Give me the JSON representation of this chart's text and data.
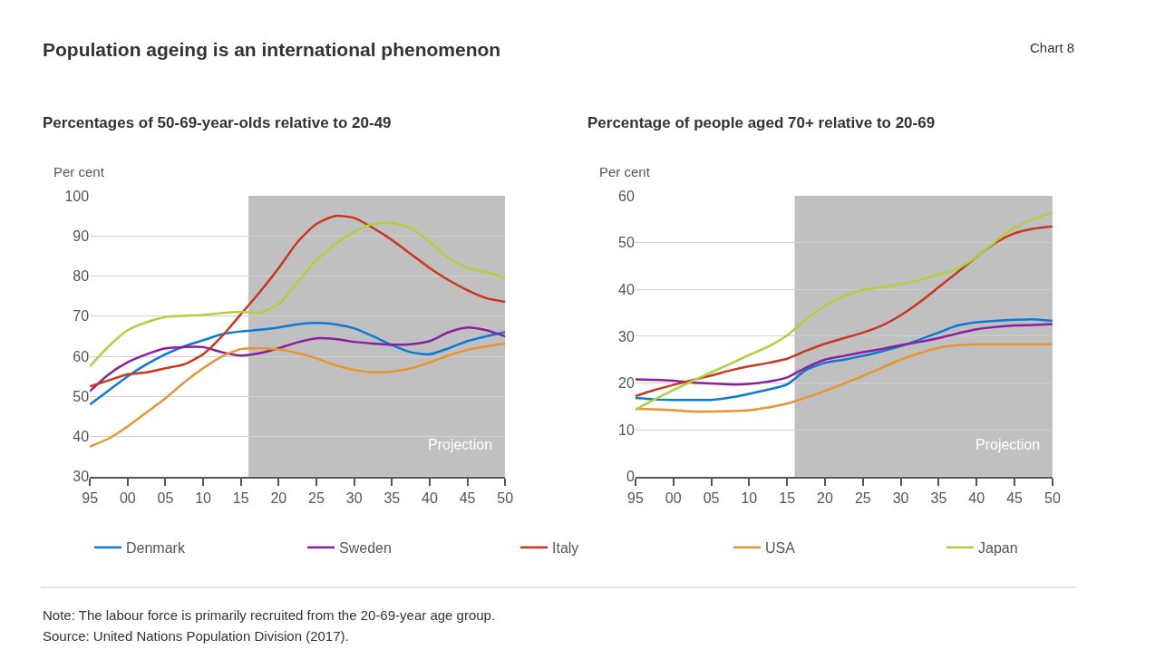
{
  "chart_data": [
    {
      "type": "line",
      "title": "Percentages of 50-69-year-olds relative to 20-49",
      "ylabel": "Per cent",
      "annotations": [
        "Population ageing is an international phenomenon",
        "Chart 8",
        "Note: The labour force is primarily recruited from the 20-69-year age group.",
        "Source: United Nations Population Division (2017)."
      ],
      "x": [
        1995,
        1997.5,
        2000,
        2002.5,
        2005,
        2007.5,
        2010,
        2012.5,
        2015,
        2017.5,
        2020,
        2022.5,
        2025,
        2027.5,
        2030,
        2032.5,
        2035,
        2037.5,
        2040,
        2042.5,
        2045,
        2047.5,
        2050
      ],
      "series": [
        {
          "name": "Denmark",
          "color": "#0a7ad4",
          "values": [
            48,
            51.5,
            55,
            58,
            60.5,
            62.5,
            64,
            65.5,
            66.2,
            66.6,
            67.2,
            68,
            68.3,
            68,
            67,
            65,
            62.8,
            61,
            60.5,
            62,
            63.8,
            65,
            66
          ]
        },
        {
          "name": "Sweden",
          "color": "#8b1fa0",
          "values": [
            51.3,
            55.5,
            58.5,
            60.5,
            62,
            62.3,
            62.3,
            61,
            60.2,
            60.8,
            62,
            63.5,
            64.5,
            64.3,
            63.6,
            63.2,
            62.9,
            63,
            63.8,
            66,
            67.2,
            66.5,
            65
          ]
        },
        {
          "name": "Italy",
          "color": "#c8381e",
          "values": [
            52.5,
            54,
            55.5,
            56,
            57,
            58,
            60.5,
            65,
            70.5,
            76,
            82,
            88.5,
            93,
            95,
            94.5,
            92,
            89,
            85.5,
            82,
            79,
            76.5,
            74.5,
            73.6
          ]
        },
        {
          "name": "USA",
          "color": "#e8942f",
          "values": [
            37.5,
            39.5,
            42.5,
            46,
            49.5,
            53.5,
            57,
            60,
            61.8,
            62,
            61.7,
            60.8,
            59.5,
            57.8,
            56.6,
            56,
            56.2,
            57,
            58.5,
            60.2,
            61.6,
            62.5,
            63.2
          ]
        },
        {
          "name": "Japan",
          "color": "#aed13c",
          "values": [
            57.5,
            62.5,
            66.5,
            68.5,
            69.8,
            70.1,
            70.3,
            70.8,
            71.1,
            70.9,
            73,
            78.5,
            84,
            88,
            91,
            93,
            93.2,
            92,
            88.5,
            84.5,
            82,
            81,
            79.5
          ]
        }
      ],
      "xlim": [
        1995,
        2050
      ],
      "xticks": [
        {
          "value": 1995,
          "label": "95"
        },
        {
          "value": 2000,
          "label": "00"
        },
        {
          "value": 2005,
          "label": "05"
        },
        {
          "value": 2010,
          "label": "10"
        },
        {
          "value": 2015,
          "label": "15"
        },
        {
          "value": 2020,
          "label": "20"
        },
        {
          "value": 2025,
          "label": "25"
        },
        {
          "value": 2030,
          "label": "30"
        },
        {
          "value": 2035,
          "label": "35"
        },
        {
          "value": 2040,
          "label": "40"
        },
        {
          "value": 2045,
          "label": "45"
        },
        {
          "value": 2050,
          "label": "50"
        }
      ],
      "ylim": [
        30,
        100
      ],
      "yticks": [
        30,
        40,
        50,
        60,
        70,
        80,
        90,
        100
      ],
      "bands": [
        {
          "axis": "x",
          "from": 2016,
          "to": 2050,
          "label": "Projection",
          "color": "#c0c0c0"
        }
      ],
      "grid": "y",
      "legend": "bottom",
      "line_style": "solid"
    },
    {
      "type": "line",
      "title": "Percentage of people aged 70+ relative to 20-69",
      "ylabel": "Per cent",
      "x": [
        1995,
        1997.5,
        2000,
        2002.5,
        2005,
        2007.5,
        2010,
        2012.5,
        2015,
        2017.5,
        2020,
        2022.5,
        2025,
        2027.5,
        2030,
        2032.5,
        2035,
        2037.5,
        2040,
        2042.5,
        2045,
        2047.5,
        2050
      ],
      "series": [
        {
          "name": "Denmark",
          "color": "#0a7ad4",
          "values": [
            16.8,
            16.5,
            16.4,
            16.4,
            16.4,
            16.9,
            17.7,
            18.6,
            19.7,
            22.8,
            24.3,
            25,
            25.8,
            26.8,
            27.9,
            29.3,
            30.8,
            32.3,
            33,
            33.3,
            33.5,
            33.6,
            33.3
          ]
        },
        {
          "name": "Sweden",
          "color": "#8b1fa0",
          "values": [
            20.8,
            20.7,
            20.5,
            20.1,
            19.9,
            19.7,
            19.8,
            20.3,
            21.2,
            23.3,
            25,
            25.8,
            26.6,
            27.3,
            28.1,
            28.8,
            29.6,
            30.6,
            31.5,
            32,
            32.3,
            32.4,
            32.6
          ]
        },
        {
          "name": "Italy",
          "color": "#c8381e",
          "values": [
            17.2,
            18.5,
            19.6,
            20.6,
            21.6,
            22.7,
            23.6,
            24.3,
            25.2,
            26.9,
            28.4,
            29.6,
            30.8,
            32.3,
            34.5,
            37.3,
            40.5,
            43.7,
            47,
            50,
            52,
            53,
            53.5
          ]
        },
        {
          "name": "USA",
          "color": "#e8942f",
          "values": [
            14.5,
            14.4,
            14.2,
            13.9,
            13.9,
            14,
            14.2,
            14.8,
            15.6,
            16.9,
            18.3,
            19.9,
            21.5,
            23.3,
            25,
            26.4,
            27.5,
            28.1,
            28.3,
            28.3,
            28.3,
            28.3,
            28.3
          ]
        },
        {
          "name": "Japan",
          "color": "#aed13c",
          "values": [
            14.3,
            16.5,
            18.5,
            20.4,
            22.3,
            24.1,
            26,
            27.8,
            30.2,
            33.6,
            36.5,
            38.6,
            39.9,
            40.5,
            41.2,
            42,
            43.2,
            44.5,
            47,
            50.3,
            53.3,
            55,
            56.5
          ]
        }
      ],
      "xlim": [
        1995,
        2050
      ],
      "xticks": [
        {
          "value": 1995,
          "label": "95"
        },
        {
          "value": 2000,
          "label": "00"
        },
        {
          "value": 2005,
          "label": "05"
        },
        {
          "value": 2010,
          "label": "10"
        },
        {
          "value": 2015,
          "label": "15"
        },
        {
          "value": 2020,
          "label": "20"
        },
        {
          "value": 2025,
          "label": "25"
        },
        {
          "value": 2030,
          "label": "30"
        },
        {
          "value": 2035,
          "label": "35"
        },
        {
          "value": 2040,
          "label": "40"
        },
        {
          "value": 2045,
          "label": "45"
        },
        {
          "value": 2050,
          "label": "50"
        }
      ],
      "ylim": [
        0,
        60
      ],
      "yticks": [
        0,
        10,
        20,
        30,
        40,
        50,
        60
      ],
      "bands": [
        {
          "axis": "x",
          "from": 2016,
          "to": 2050,
          "label": "Projection",
          "color": "#c0c0c0"
        }
      ],
      "grid": "y",
      "legend": "bottom",
      "line_style": "solid"
    }
  ]
}
